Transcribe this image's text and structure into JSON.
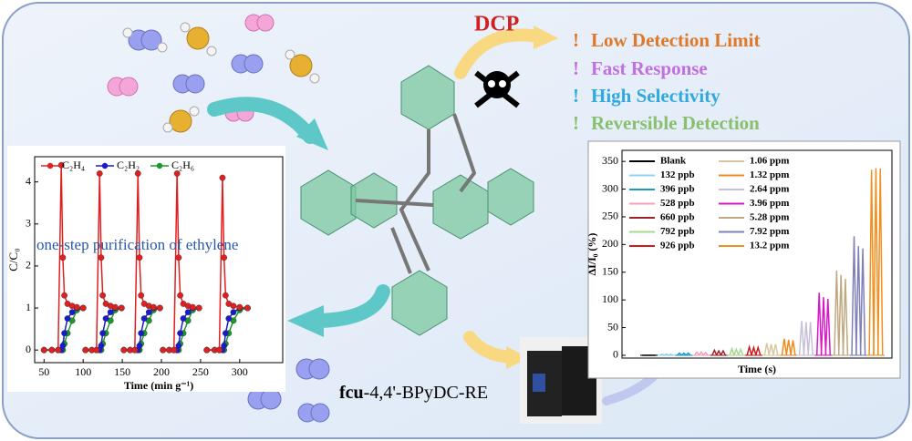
{
  "labels": {
    "dcp": "DCP",
    "bullet": "!",
    "features": [
      "Low Detection Limit",
      "Fast Response",
      "High Selectivity",
      "Reversible Detection"
    ],
    "material_prefix": "fcu",
    "material_name": "-4,4'-BPyDC-RE"
  },
  "chart_data": [
    {
      "type": "line",
      "xlabel": "Time (min g⁻¹)",
      "ylabel": "C/C₀",
      "annotation": "one-step purification of ethylene",
      "xlim": [
        38,
        355
      ],
      "ylim": [
        -0.3,
        4.6
      ],
      "xticks": [
        50,
        100,
        150,
        200,
        250,
        300
      ],
      "yticks": [
        0,
        1,
        2,
        3,
        4
      ],
      "x": [
        50,
        60,
        68,
        72,
        74,
        76,
        80,
        86,
        92,
        100,
        null,
        103,
        111,
        117,
        121,
        123,
        125,
        129,
        135,
        141,
        149,
        null,
        152,
        160,
        166,
        170,
        172,
        174,
        178,
        184,
        190,
        198,
        null,
        202,
        210,
        216,
        220,
        222,
        224,
        228,
        234,
        240,
        248,
        null,
        258,
        268,
        274,
        278,
        280,
        282,
        286,
        292,
        300,
        310
      ],
      "series": [
        {
          "name": "C₂H₄",
          "color": "#e02020",
          "values": [
            0,
            0,
            0,
            4.4,
            2.2,
            1.3,
            1.1,
            1.05,
            1.02,
            1.0,
            null,
            0,
            0,
            0,
            4.2,
            2.2,
            1.3,
            1.1,
            1.05,
            1.02,
            1.0,
            null,
            0,
            0,
            0,
            4.2,
            2.2,
            1.3,
            1.1,
            1.05,
            1.02,
            1.0,
            null,
            0,
            0,
            0,
            4.2,
            2.2,
            1.3,
            1.1,
            1.05,
            1.02,
            1.0,
            null,
            0,
            0,
            0,
            4.1,
            2.2,
            1.3,
            1.1,
            1.05,
            1.02,
            1.0
          ]
        },
        {
          "name": "C₂H₂",
          "color": "#1a1ad0",
          "values": [
            0,
            0,
            0,
            0,
            0.1,
            0.4,
            0.75,
            0.9,
            1.0,
            1.0,
            null,
            0,
            0,
            0,
            0,
            0.1,
            0.4,
            0.75,
            0.9,
            1.0,
            1.0,
            null,
            0,
            0,
            0,
            0,
            0.1,
            0.4,
            0.75,
            0.9,
            1.0,
            1.0,
            null,
            0,
            0,
            0,
            0,
            0.1,
            0.4,
            0.75,
            0.9,
            1.0,
            1.0,
            null,
            0,
            0,
            0,
            0,
            0.1,
            0.4,
            0.75,
            0.9,
            1.0,
            1.0
          ]
        },
        {
          "name": "C₂H₆",
          "color": "#1a9a2a",
          "values": [
            0,
            0,
            0,
            0,
            0,
            0.15,
            0.4,
            0.7,
            0.95,
            1.0,
            null,
            0,
            0,
            0,
            0,
            0,
            0.15,
            0.4,
            0.7,
            0.95,
            1.0,
            null,
            0,
            0,
            0,
            0,
            0,
            0.15,
            0.4,
            0.7,
            0.95,
            1.0,
            null,
            0,
            0,
            0,
            0,
            0,
            0.15,
            0.4,
            0.7,
            0.95,
            1.0,
            null,
            0,
            0,
            0,
            0,
            0,
            0.15,
            0.4,
            0.7,
            0.95,
            1.0
          ]
        }
      ]
    },
    {
      "type": "peaks",
      "xlabel": "Time (s)",
      "ylabel": "ΔI/I₀ (%)",
      "ylim": [
        -5,
        370
      ],
      "yticks": [
        0,
        50,
        100,
        150,
        200,
        250,
        300,
        350
      ],
      "series": [
        {
          "name": "Blank",
          "color": "#000000",
          "values": [
            0,
            0,
            0
          ]
        },
        {
          "name": "132 ppb",
          "color": "#8fd3f0",
          "values": [
            2,
            2,
            2
          ]
        },
        {
          "name": "396 ppb",
          "color": "#1a9ac8",
          "values": [
            4,
            4,
            4
          ]
        },
        {
          "name": "528 ppb",
          "color": "#f3a0c0",
          "values": [
            6,
            6,
            5
          ]
        },
        {
          "name": "660 ppb",
          "color": "#a0202a",
          "values": [
            9,
            8,
            8
          ]
        },
        {
          "name": "792 ppb",
          "color": "#a8d890",
          "values": [
            12,
            11,
            11
          ]
        },
        {
          "name": "926 ppb",
          "color": "#d01818",
          "values": [
            15,
            14,
            14
          ]
        },
        {
          "name": "1.06 ppm",
          "color": "#d8c8a0",
          "values": [
            22,
            20,
            20
          ]
        },
        {
          "name": "1.32 ppm",
          "color": "#f08a20",
          "values": [
            30,
            28,
            27
          ]
        },
        {
          "name": "2.64 ppm",
          "color": "#c8c0d8",
          "values": [
            62,
            60,
            60
          ]
        },
        {
          "name": "3.96 ppm",
          "color": "#d818c8",
          "values": [
            113,
            105,
            102
          ]
        },
        {
          "name": "5.28 ppm",
          "color": "#c0a880",
          "values": [
            153,
            145,
            138
          ]
        },
        {
          "name": "7.92 ppm",
          "color": "#8080b8",
          "values": [
            215,
            197,
            193
          ]
        },
        {
          "name": "13.2 ppm",
          "color": "#f09020",
          "values": [
            335,
            338,
            337
          ]
        }
      ]
    }
  ]
}
